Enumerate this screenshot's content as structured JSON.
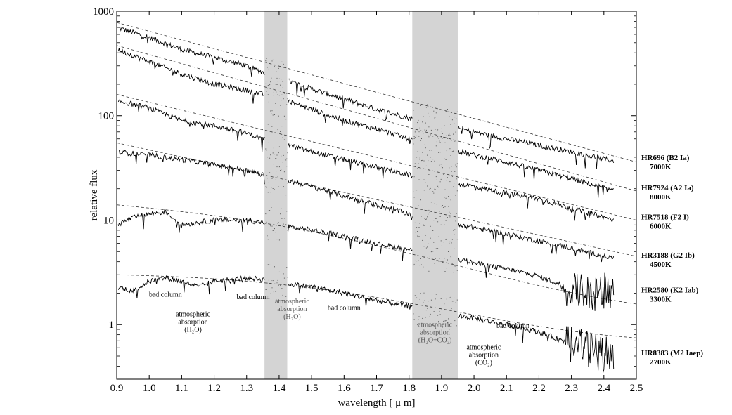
{
  "chart_data": {
    "type": "line",
    "xlabel": "wavelength [ μ m]",
    "ylabel": "relative flux",
    "xlim": [
      0.9,
      2.5
    ],
    "ylim": [
      0.3,
      1000
    ],
    "yscale": "log",
    "x_ticks": [
      "0.9",
      "1.0",
      "1.1",
      "1.2",
      "1.3",
      "1.4",
      "1.5",
      "1.6",
      "1.7",
      "1.8",
      "1.9",
      "2.0",
      "2.1",
      "2.2",
      "2.3",
      "2.4",
      "2.5"
    ],
    "y_ticks": [
      "1000",
      "100",
      "10",
      "1"
    ],
    "y_tick_values": [
      1000,
      100,
      10,
      1
    ],
    "grid": false,
    "shaded_bands": [
      {
        "x0": 1.355,
        "x1": 1.425
      },
      {
        "x0": 1.81,
        "x1": 1.95
      }
    ],
    "series": [
      {
        "name": "HR696 (B2 Ia)",
        "temperature": "7000K",
        "x": [
          0.9,
          1.0,
          1.1,
          1.2,
          1.3,
          1.35,
          1.45,
          1.5,
          1.6,
          1.7,
          1.8,
          2.0,
          2.1,
          2.2,
          2.3,
          2.43
        ],
        "y": [
          700,
          560,
          430,
          360,
          300,
          260,
          205,
          180,
          145,
          115,
          95,
          70,
          60,
          52,
          45,
          37
        ],
        "model_y0": 780,
        "model_y1": 36
      },
      {
        "name": "HR7924 (A2 Ia)",
        "temperature": "8000K",
        "x": [
          0.9,
          1.0,
          1.1,
          1.2,
          1.3,
          1.35,
          1.45,
          1.5,
          1.6,
          1.7,
          1.8,
          2.0,
          2.1,
          2.2,
          2.3,
          2.43
        ],
        "y": [
          430,
          330,
          250,
          200,
          175,
          160,
          130,
          115,
          90,
          75,
          60,
          42,
          36,
          30,
          25,
          19
        ],
        "model_y0": 470,
        "model_y1": 19
      },
      {
        "name": "HR7518 (F2 I)",
        "temperature": "6000K",
        "x": [
          0.9,
          1.0,
          1.1,
          1.2,
          1.3,
          1.35,
          1.45,
          1.5,
          1.6,
          1.7,
          1.8,
          2.0,
          2.1,
          2.2,
          2.3,
          2.43
        ],
        "y": [
          140,
          118,
          90,
          80,
          68,
          60,
          50,
          45,
          38,
          32,
          27,
          21,
          18,
          16,
          13,
          10
        ],
        "model_y0": 160,
        "model_y1": 10
      },
      {
        "name": "HR3188 (G2 Ib)",
        "temperature": "4500K",
        "x": [
          0.9,
          1.0,
          1.1,
          1.2,
          1.3,
          1.35,
          1.45,
          1.5,
          1.6,
          1.7,
          1.8,
          2.0,
          2.1,
          2.2,
          2.3,
          2.43
        ],
        "y": [
          45,
          42,
          38,
          34,
          30,
          27,
          23,
          21,
          17,
          14,
          11.5,
          8.5,
          7.4,
          6.3,
          5.4,
          4.3
        ],
        "model_y0": 55,
        "model_y1": 4.5
      },
      {
        "name": "HR2580 (K2 Iab)",
        "temperature": "3300K",
        "x": [
          0.9,
          0.95,
          1.0,
          1.05,
          1.1,
          1.2,
          1.3,
          1.35,
          1.45,
          1.5,
          1.6,
          1.7,
          1.8,
          2.0,
          2.1,
          2.2,
          2.3,
          2.43
        ],
        "y": [
          9,
          10.5,
          11.5,
          12,
          9,
          10,
          10,
          9.5,
          8.5,
          8,
          7,
          6,
          5.2,
          3.9,
          3.4,
          2.9,
          2.2,
          2.0
        ],
        "model_y0": 14,
        "model_y1": 1.9
      },
      {
        "name": "HR8383 (M2 Iaep)",
        "temperature": "2700K",
        "x": [
          0.9,
          0.95,
          1.0,
          1.05,
          1.1,
          1.15,
          1.2,
          1.3,
          1.35,
          1.45,
          1.5,
          1.6,
          1.7,
          1.8,
          2.0,
          2.1,
          2.2,
          2.3,
          2.43
        ],
        "y": [
          2.3,
          2.1,
          2.6,
          2.8,
          2.6,
          2.3,
          2.6,
          2.8,
          2.7,
          2.4,
          2.3,
          2.0,
          1.7,
          1.5,
          1.15,
          1.0,
          0.85,
          0.65,
          0.5
        ],
        "model_y0": 3.0,
        "model_y1": 0.9
      }
    ],
    "annotations": [
      {
        "text": [
          "bad column"
        ],
        "x": 1.05,
        "y": 1.85,
        "color": "black"
      },
      {
        "text": [
          "atmospheric",
          "absorption",
          "(H₂O)"
        ],
        "x": 1.135,
        "y": 1.2,
        "color": "black"
      },
      {
        "text": [
          "bad column"
        ],
        "x": 1.32,
        "y": 1.75,
        "color": "black"
      },
      {
        "text": [
          "atmospheric",
          "absorption",
          "(H₂O)"
        ],
        "x": 1.44,
        "y": 1.6,
        "color": "grey"
      },
      {
        "text": [
          "bad column"
        ],
        "x": 1.6,
        "y": 1.38,
        "color": "black"
      },
      {
        "text": [
          "atmospheric",
          "absorption",
          "(H₂O+CO₂)"
        ],
        "x": 1.88,
        "y": 0.95,
        "color": "grey"
      },
      {
        "text": [
          "atmospheric",
          "absorption",
          "(CO₂)"
        ],
        "x": 2.03,
        "y": 0.58,
        "color": "black"
      },
      {
        "text": [
          "bad column"
        ],
        "x": 2.12,
        "y": 0.93,
        "color": "black"
      }
    ]
  }
}
